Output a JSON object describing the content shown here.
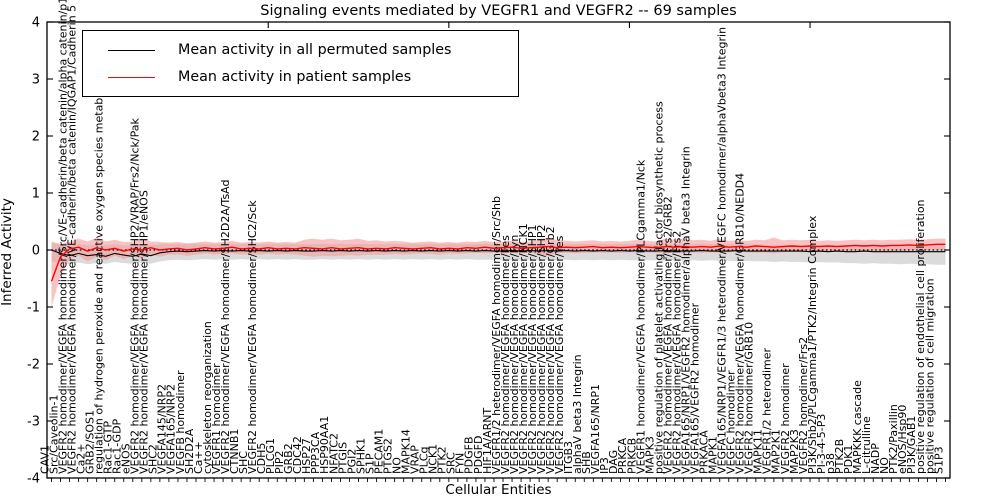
{
  "figure": {
    "title": "Signaling events mediated by VEGFR1 and VEGFR2 -- 69 samples",
    "ylabel": "Inferred Activity",
    "xlabel": "Cellular Entities"
  },
  "legend": [
    {
      "label": "Mean activity in all permuted samples",
      "color": "#000000"
    },
    {
      "label": "Mean activity in patient samples",
      "color": "#ff0000"
    }
  ],
  "chart_data": {
    "type": "line",
    "title": "Signaling events mediated by VEGFR1 and VEGFR2 -- 69 samples",
    "xlabel": "Cellular Entities",
    "ylabel": "Inferred Activity",
    "ylim": [
      -4,
      4
    ],
    "yticks": [
      -4,
      -3,
      -2,
      -1,
      0,
      1,
      2,
      3,
      4
    ],
    "grid": false,
    "legend_position": "upper-left",
    "zero_line": {
      "style": "dotted",
      "color": "#000000",
      "y": 0
    },
    "top_tick_indices": [
      24,
      44,
      64,
      84
    ],
    "categories": [
      "CAV1",
      "Src/Caveolin-1",
      "VEGFR2 homodimer/VEGFA homodimer/Src/VE-cadherin/beta catenin/alpha catenin/p120 catenin",
      "VEGFR2 homodimer/VEGFA homodimer/VE-cadherin/beta catenin/IQGAP1/Cadherin 5",
      "Ca2+",
      "GRB2/SOS1",
      "regulation of hydrogen peroxide and reactive oxygen species metabolic process",
      "Rac1-GTP",
      "Rac1-GDP",
      "eNOS",
      "VEGFR2 homodimer/VEGFA homodimer/SHP2/VRAP/Frs2/Nck/Pak",
      "VEGFR2 homodimer/VEGFA homodimer/SHP1/eNOS",
      "SHC2",
      "VEGFA145/NRP2",
      "VEGFA165/NRP2",
      "VEGFB homodimer",
      "SH2D2A",
      "Ca++",
      "cytoskeleton reorganization",
      "VEGFR1 homodimer",
      "VEGFR2 homodimer/VEGFA homodimer/SH2D2A/TsAd",
      "CTNNB1",
      "SHC",
      "VEGFR2 homodimer/VEGFA homodimer/SHC2/Sck",
      "CDH5",
      "PLCG1",
      "PIP2",
      "GRB2",
      "CDC42",
      "HSP27",
      "PPP3CA",
      "HSP90AA1",
      "NFATC2",
      "PTGIS",
      "PGI2",
      "SPHK1",
      "S1P",
      "PECAM1",
      "PTGS2",
      "NO",
      "MAPK14",
      "VRAP",
      "PLCg",
      "NCK1",
      "PTK2",
      "SRC",
      "FYN",
      "PDGFB",
      "PDGFD",
      "HIF1A/ARNT",
      "VEGFR1/2 heterodimer/VEGFA homodimer/Src/Shb",
      "VEGFR2 homodimer/VEGFA homodimer/Fes",
      "VEGFR2 homodimer/VEGFA homodimer/Fyn",
      "VEGFR2 homodimer/VEGFA homodimer/NCK1",
      "VEGFR2 homodimer/VEGFA homodimer/SHP1",
      "VEGFR2 homodimer/VEGFA homodimer/SHP2",
      "VEGFR2 homodimer/VEGFA homodimer/Grb2",
      "VEGFR2 homodimer/VEGFA homodimer/Yes",
      "ITGB3",
      "alphaV beta3 Integrin",
      "SHB",
      "VEGFA165/NRP1",
      "IP3",
      "DAG",
      "PRKCA",
      "PRKCB",
      "VEGFR1 homodimer/VEGFA homodimer/PLCgamma1/Nck",
      "MAPK3",
      "positive regulation of platelet activating factor biosynthetic process",
      "VEGFR2 homodimer/VEGFA homodimer/Frs2/GRB2",
      "VEGFR2 homodimer/VEGFA homodimer/Frs2",
      "VEGFA165/NRP1/VEGFR2 homodimer/alphaV beta3 Integrin",
      "VEGFA165/VEGFR2 homodimer",
      "PRKACA",
      "MAPK1",
      "VEGFA165/NRP1/VEGFR1/3 heterodimer/VEGFC homodimer/alphaVbeta3 Integrin",
      "VEGFC homodimer",
      "VEGFR2 homodimer/VEGFA homodimer/GRB10/NEDD4",
      "VEGFR2 homodimer/GRB10",
      "MAPK11",
      "VEGFR1/2 heterodimer",
      "MAP2K1",
      "VEGFR2 homodimer",
      "MAP2K3",
      "VEGFR2 homodimer/Frs2",
      "PI3K/Shb2/PLCgamma1/PTK2/Integrin Complex",
      "PI-3-4-5-P3",
      "p38",
      "PTK2B",
      "PDK1",
      "MAPKKK cascade",
      "L-citrulline",
      "NADP",
      "NO",
      "PTK2/Paxillin",
      "eNOS/Hsp90",
      "PI3K/GAB1",
      "positive regulation of endothelial cell proliferation",
      "positive regulation of cell migration",
      "S1P3"
    ],
    "series": [
      {
        "name": "Mean activity in all permuted samples",
        "color": "#000000",
        "band_color": "#c8c8c8",
        "values": [
          0.0,
          -0.06,
          -0.1,
          -0.06,
          -0.1,
          -0.08,
          -0.11,
          -0.06,
          -0.09,
          -0.11,
          -0.07,
          -0.1,
          -0.05,
          -0.03,
          -0.02,
          -0.03,
          -0.02,
          -0.01,
          -0.02,
          -0.01,
          -0.02,
          -0.01,
          -0.02,
          -0.01,
          -0.02,
          -0.01,
          -0.02,
          -0.01,
          -0.02,
          -0.02,
          -0.01,
          -0.02,
          -0.01,
          -0.02,
          -0.01,
          -0.02,
          -0.01,
          -0.02,
          -0.01,
          -0.02,
          -0.01,
          -0.02,
          -0.01,
          -0.02,
          -0.01,
          -0.02,
          -0.01,
          -0.02,
          -0.01,
          -0.02,
          -0.02,
          -0.01,
          -0.02,
          -0.01,
          -0.02,
          -0.01,
          -0.02,
          -0.01,
          -0.02,
          -0.01,
          -0.02,
          -0.01,
          -0.02,
          -0.01,
          -0.02,
          -0.01,
          -0.02,
          -0.02,
          -0.01,
          -0.02,
          -0.02,
          -0.02,
          -0.01,
          -0.02,
          -0.02,
          -0.02,
          -0.01,
          -0.02,
          -0.02,
          -0.02,
          -0.02,
          -0.02,
          -0.02,
          -0.02,
          -0.03,
          -0.02,
          -0.03,
          -0.02,
          -0.03,
          -0.03,
          -0.02,
          -0.03,
          -0.03,
          -0.03,
          -0.03,
          -0.03,
          -0.03,
          -0.03,
          -0.03,
          -0.03
        ],
        "band_upper": [
          0.12,
          0.1,
          0.08,
          0.1,
          0.08,
          0.09,
          0.08,
          0.1,
          0.08,
          0.08,
          0.09,
          0.08,
          0.1,
          0.11,
          0.11,
          0.1,
          0.11,
          0.11,
          0.1,
          0.11,
          0.11,
          0.1,
          0.11,
          0.1,
          0.11,
          0.1,
          0.11,
          0.1,
          0.1,
          0.1,
          0.11,
          0.1,
          0.11,
          0.1,
          0.11,
          0.1,
          0.11,
          0.1,
          0.11,
          0.1,
          0.11,
          0.1,
          0.11,
          0.1,
          0.11,
          0.1,
          0.11,
          0.1,
          0.11,
          0.1,
          0.1,
          0.11,
          0.1,
          0.11,
          0.1,
          0.11,
          0.1,
          0.11,
          0.1,
          0.11,
          0.1,
          0.11,
          0.1,
          0.11,
          0.1,
          0.11,
          0.1,
          0.1,
          0.11,
          0.1,
          0.1,
          0.1,
          0.11,
          0.1,
          0.1,
          0.1,
          0.11,
          0.1,
          0.1,
          0.09,
          0.09,
          0.09,
          0.09,
          0.09,
          0.08,
          0.09,
          0.08,
          0.09,
          0.08,
          0.08,
          0.09,
          0.08,
          0.08,
          0.08,
          0.08,
          0.08,
          0.08,
          0.08,
          0.08,
          0.08
        ],
        "band_lower": [
          -0.2,
          -0.22,
          -0.25,
          -0.22,
          -0.25,
          -0.23,
          -0.24,
          -0.21,
          -0.23,
          -0.24,
          -0.22,
          -0.24,
          -0.2,
          -0.18,
          -0.17,
          -0.18,
          -0.17,
          -0.16,
          -0.17,
          -0.16,
          -0.17,
          -0.16,
          -0.17,
          -0.16,
          -0.17,
          -0.16,
          -0.17,
          -0.16,
          -0.17,
          -0.17,
          -0.16,
          -0.17,
          -0.16,
          -0.17,
          -0.16,
          -0.17,
          -0.16,
          -0.17,
          -0.16,
          -0.17,
          -0.16,
          -0.17,
          -0.16,
          -0.17,
          -0.16,
          -0.17,
          -0.16,
          -0.17,
          -0.17,
          -0.17,
          -0.18,
          -0.17,
          -0.18,
          -0.17,
          -0.18,
          -0.17,
          -0.18,
          -0.17,
          -0.18,
          -0.17,
          -0.18,
          -0.17,
          -0.18,
          -0.17,
          -0.18,
          -0.18,
          -0.18,
          -0.18,
          -0.19,
          -0.18,
          -0.19,
          -0.18,
          -0.19,
          -0.18,
          -0.19,
          -0.19,
          -0.2,
          -0.19,
          -0.2,
          -0.2,
          -0.21,
          -0.2,
          -0.21,
          -0.21,
          -0.22,
          -0.21,
          -0.22,
          -0.22,
          -0.23,
          -0.23,
          -0.24,
          -0.23,
          -0.24,
          -0.24,
          -0.25,
          -0.24,
          -0.25,
          -0.25,
          -0.26,
          -0.26
        ]
      },
      {
        "name": "Mean activity in patient samples",
        "color": "#ff0000",
        "band_color": "#f59b9b",
        "values": [
          -0.55,
          -0.12,
          0.02,
          0.05,
          -0.02,
          0.04,
          0.0,
          0.03,
          -0.02,
          0.02,
          0.0,
          0.04,
          0.0,
          0.02,
          0.03,
          0.0,
          0.02,
          0.04,
          0.02,
          0.03,
          0.05,
          0.02,
          0.03,
          0.02,
          0.04,
          0.02,
          0.03,
          0.02,
          0.04,
          0.03,
          0.02,
          0.04,
          0.02,
          0.03,
          0.04,
          0.02,
          0.03,
          0.02,
          0.04,
          0.03,
          0.02,
          0.03,
          0.04,
          0.02,
          0.03,
          0.02,
          0.04,
          0.03,
          0.05,
          0.03,
          0.04,
          0.05,
          0.03,
          0.04,
          0.05,
          0.06,
          0.04,
          0.05,
          0.04,
          0.05,
          0.06,
          0.04,
          0.05,
          0.04,
          0.05,
          0.06,
          0.05,
          0.04,
          0.06,
          0.05,
          0.06,
          0.05,
          0.06,
          0.05,
          0.07,
          0.05,
          0.06,
          0.05,
          0.07,
          0.06,
          0.05,
          0.06,
          0.07,
          0.06,
          0.07,
          0.06,
          0.07,
          0.06,
          0.07,
          0.08,
          0.07,
          0.08,
          0.07,
          0.08,
          0.08,
          0.09,
          0.08,
          0.09,
          0.1,
          0.1
        ],
        "band_upper": [
          0.15,
          0.1,
          0.15,
          0.2,
          0.15,
          0.22,
          0.15,
          0.18,
          0.14,
          0.15,
          0.2,
          0.15,
          0.14,
          0.13,
          0.14,
          0.12,
          0.13,
          0.15,
          0.13,
          0.14,
          0.16,
          0.13,
          0.14,
          0.13,
          0.15,
          0.13,
          0.14,
          0.13,
          0.18,
          0.2,
          0.18,
          0.2,
          0.17,
          0.18,
          0.2,
          0.16,
          0.17,
          0.15,
          0.16,
          0.15,
          0.13,
          0.14,
          0.15,
          0.13,
          0.14,
          0.13,
          0.15,
          0.14,
          0.16,
          0.14,
          0.15,
          0.16,
          0.14,
          0.15,
          0.18,
          0.22,
          0.17,
          0.16,
          0.15,
          0.16,
          0.17,
          0.15,
          0.16,
          0.15,
          0.16,
          0.18,
          0.16,
          0.15,
          0.2,
          0.18,
          0.2,
          0.17,
          0.18,
          0.16,
          0.2,
          0.16,
          0.17,
          0.16,
          0.18,
          0.17,
          0.22,
          0.17,
          0.18,
          0.17,
          0.18,
          0.16,
          0.17,
          0.16,
          0.17,
          0.18,
          0.17,
          0.18,
          0.17,
          0.18,
          0.18,
          0.19,
          0.18,
          0.19,
          0.2,
          0.2
        ],
        "band_lower": [
          -1.0,
          -0.45,
          -0.15,
          -0.1,
          -0.2,
          -0.12,
          -0.18,
          -0.1,
          -0.16,
          -0.1,
          -0.15,
          -0.08,
          -0.12,
          -0.08,
          -0.08,
          -0.1,
          -0.08,
          -0.06,
          -0.08,
          -0.07,
          -0.06,
          -0.08,
          -0.07,
          -0.08,
          -0.06,
          -0.08,
          -0.07,
          -0.08,
          -0.1,
          -0.12,
          -0.1,
          -0.11,
          -0.1,
          -0.09,
          -0.1,
          -0.08,
          -0.09,
          -0.08,
          -0.07,
          -0.08,
          -0.07,
          -0.06,
          -0.07,
          -0.08,
          -0.06,
          -0.07,
          -0.06,
          -0.05,
          -0.06,
          -0.05,
          -0.06,
          -0.05,
          -0.06,
          -0.05,
          -0.08,
          -0.1,
          -0.06,
          -0.05,
          -0.06,
          -0.05,
          -0.04,
          -0.05,
          -0.04,
          -0.05,
          -0.04,
          -0.05,
          -0.04,
          -0.05,
          -0.06,
          -0.05,
          -0.06,
          -0.04,
          -0.05,
          -0.04,
          -0.05,
          -0.04,
          -0.03,
          -0.04,
          -0.05,
          -0.04,
          -0.06,
          -0.04,
          -0.03,
          -0.04,
          -0.03,
          -0.04,
          -0.03,
          -0.02,
          -0.03,
          -0.02,
          -0.03,
          -0.02,
          -0.03,
          -0.02,
          -0.02,
          -0.01,
          -0.02,
          -0.01,
          0.0,
          0.0
        ]
      }
    ]
  }
}
